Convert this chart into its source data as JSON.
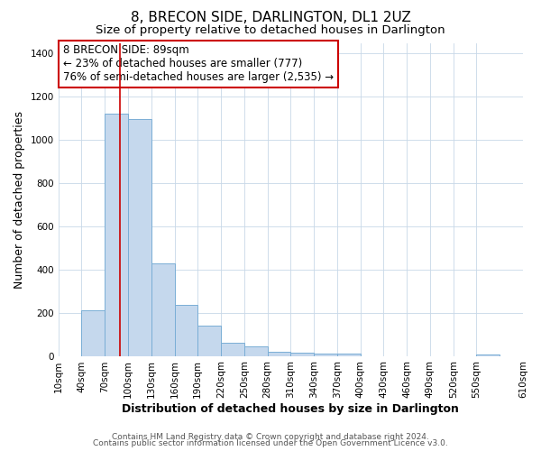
{
  "title": "8, BRECON SIDE, DARLINGTON, DL1 2UZ",
  "subtitle": "Size of property relative to detached houses in Darlington",
  "xlabel": "Distribution of detached houses by size in Darlington",
  "ylabel": "Number of detached properties",
  "bar_values": [
    0,
    210,
    1120,
    1095,
    430,
    238,
    140,
    60,
    45,
    20,
    13,
    10,
    10,
    0,
    0,
    0,
    0,
    0,
    5
  ],
  "bin_edges": [
    10,
    40,
    70,
    100,
    130,
    160,
    190,
    220,
    250,
    280,
    310,
    340,
    370,
    400,
    430,
    460,
    490,
    520,
    550,
    610
  ],
  "tick_labels": [
    "10sqm",
    "40sqm",
    "70sqm",
    "100sqm",
    "130sqm",
    "160sqm",
    "190sqm",
    "220sqm",
    "250sqm",
    "280sqm",
    "310sqm",
    "340sqm",
    "370sqm",
    "400sqm",
    "430sqm",
    "460sqm",
    "490sqm",
    "520sqm",
    "550sqm",
    "610sqm"
  ],
  "bar_color": "#c5d8ed",
  "bar_edge_color": "#7aaed6",
  "red_line_x": 89,
  "xlim": [
    10,
    610
  ],
  "ylim": [
    0,
    1450
  ],
  "yticks": [
    0,
    200,
    400,
    600,
    800,
    1000,
    1200,
    1400
  ],
  "annotation_line1": "8 BRECON SIDE: 89sqm",
  "annotation_line2": "← 23% of detached houses are smaller (777)",
  "annotation_line3": "76% of semi-detached houses are larger (2,535) →",
  "footer_line1": "Contains HM Land Registry data © Crown copyright and database right 2024.",
  "footer_line2": "Contains public sector information licensed under the Open Government Licence v3.0.",
  "background_color": "#ffffff",
  "grid_color": "#c8d8e8",
  "annotation_box_facecolor": "#ffffff",
  "annotation_box_edgecolor": "#cc0000",
  "title_fontsize": 11,
  "subtitle_fontsize": 9.5,
  "axis_label_fontsize": 9,
  "tick_fontsize": 7.5,
  "annotation_fontsize": 8.5,
  "footer_fontsize": 6.5
}
